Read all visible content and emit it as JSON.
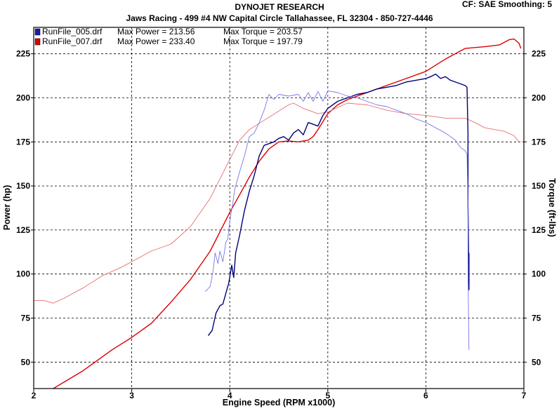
{
  "header": {
    "title": "DYNOJET RESEARCH",
    "subtitle": "Jaws Racing - 499 #4 NW Capital Circle Tallahassee, FL 32304 - 850-727-4446",
    "settings": "CF: SAE  Smoothing: 5"
  },
  "chart_data": {
    "type": "line",
    "xlabel": "Engine Speed (RPM x1000)",
    "ylabel_left": "Power (hp)",
    "ylabel_right": "Torque (ft-lbs)",
    "xlim": [
      2,
      7
    ],
    "ylim": [
      35,
      240
    ],
    "x_ticks": [
      2,
      3,
      4,
      5,
      6,
      7
    ],
    "y_ticks": [
      50,
      75,
      100,
      125,
      150,
      175,
      200,
      225
    ],
    "grid": true,
    "legend_position": "top-left",
    "colors": {
      "run005_power": "#00007a",
      "run005_torque": "#7878e6",
      "run007_power": "#dc0000",
      "run007_torque": "#e66e6e"
    },
    "legend": [
      {
        "file": "RunFile_005.drf",
        "max_power_label": "Max Power = 213.56",
        "max_torque_label": "Max Torque = 203.57",
        "color": "#1a1ab0"
      },
      {
        "file": "RunFile_007.drf",
        "max_power_label": "Max Power = 233.40",
        "max_torque_label": "Max Torque = 197.79",
        "color": "#dc0000"
      }
    ],
    "series": [
      {
        "file": "RunFile_007.drf",
        "kind": "power",
        "points": [
          [
            2.0,
            27
          ],
          [
            2.2,
            35
          ],
          [
            2.5,
            45
          ],
          [
            2.8,
            57
          ],
          [
            3.0,
            64
          ],
          [
            3.2,
            72
          ],
          [
            3.4,
            84
          ],
          [
            3.6,
            97
          ],
          [
            3.8,
            113
          ],
          [
            4.0,
            135
          ],
          [
            4.1,
            145
          ],
          [
            4.2,
            155
          ],
          [
            4.3,
            164
          ],
          [
            4.4,
            171
          ],
          [
            4.5,
            175
          ],
          [
            4.6,
            175.5
          ],
          [
            4.7,
            175
          ],
          [
            4.8,
            176
          ],
          [
            4.85,
            178
          ],
          [
            4.9,
            182
          ],
          [
            5.0,
            191
          ],
          [
            5.1,
            196
          ],
          [
            5.2,
            199
          ],
          [
            5.4,
            203
          ],
          [
            5.6,
            207
          ],
          [
            5.8,
            211
          ],
          [
            6.0,
            215
          ],
          [
            6.2,
            222
          ],
          [
            6.4,
            228
          ],
          [
            6.6,
            229
          ],
          [
            6.75,
            230
          ],
          [
            6.85,
            233
          ],
          [
            6.9,
            233.4
          ],
          [
            6.95,
            231
          ],
          [
            6.97,
            228
          ]
        ]
      },
      {
        "file": "RunFile_007.drf",
        "kind": "torque",
        "points": [
          [
            2.0,
            85
          ],
          [
            2.1,
            85
          ],
          [
            2.2,
            83.5
          ],
          [
            2.3,
            86
          ],
          [
            2.5,
            92
          ],
          [
            2.7,
            99
          ],
          [
            2.9,
            104
          ],
          [
            3.0,
            107
          ],
          [
            3.2,
            113
          ],
          [
            3.4,
            117
          ],
          [
            3.6,
            127
          ],
          [
            3.8,
            143
          ],
          [
            4.0,
            165
          ],
          [
            4.1,
            176
          ],
          [
            4.2,
            182
          ],
          [
            4.4,
            189
          ],
          [
            4.6,
            196
          ],
          [
            4.65,
            197
          ],
          [
            4.75,
            194
          ],
          [
            4.9,
            191
          ],
          [
            5.0,
            192
          ],
          [
            5.2,
            197
          ],
          [
            5.4,
            196
          ],
          [
            5.6,
            193
          ],
          [
            5.8,
            191
          ],
          [
            6.0,
            190
          ],
          [
            6.2,
            188.5
          ],
          [
            6.4,
            188.5
          ],
          [
            6.5,
            186
          ],
          [
            6.6,
            183
          ],
          [
            6.8,
            181
          ],
          [
            6.9,
            178.5
          ],
          [
            6.95,
            175
          ]
        ]
      },
      {
        "file": "RunFile_005.drf",
        "kind": "power",
        "points": [
          [
            3.78,
            65
          ],
          [
            3.82,
            68
          ],
          [
            3.86,
            78
          ],
          [
            3.9,
            82
          ],
          [
            3.93,
            83
          ],
          [
            3.96,
            89
          ],
          [
            3.99,
            95
          ],
          [
            4.02,
            105
          ],
          [
            4.04,
            98
          ],
          [
            4.06,
            112
          ],
          [
            4.1,
            122
          ],
          [
            4.15,
            136
          ],
          [
            4.2,
            147
          ],
          [
            4.25,
            156
          ],
          [
            4.3,
            167
          ],
          [
            4.35,
            173
          ],
          [
            4.4,
            174
          ],
          [
            4.45,
            175
          ],
          [
            4.5,
            177
          ],
          [
            4.55,
            178
          ],
          [
            4.6,
            176
          ],
          [
            4.65,
            180
          ],
          [
            4.7,
            182
          ],
          [
            4.75,
            179
          ],
          [
            4.8,
            186
          ],
          [
            4.85,
            185
          ],
          [
            4.9,
            184
          ],
          [
            4.95,
            190
          ],
          [
            5.0,
            194
          ],
          [
            5.1,
            198
          ],
          [
            5.2,
            200
          ],
          [
            5.3,
            202
          ],
          [
            5.4,
            203
          ],
          [
            5.5,
            205
          ],
          [
            5.6,
            206
          ],
          [
            5.7,
            207
          ],
          [
            5.8,
            209
          ],
          [
            5.9,
            210
          ],
          [
            6.0,
            211
          ],
          [
            6.05,
            212
          ],
          [
            6.1,
            213.5
          ],
          [
            6.15,
            211
          ],
          [
            6.2,
            212
          ],
          [
            6.25,
            210
          ],
          [
            6.3,
            209
          ],
          [
            6.35,
            208
          ],
          [
            6.4,
            207
          ],
          [
            6.42,
            206
          ],
          [
            6.43,
            180
          ],
          [
            6.43,
            140
          ],
          [
            6.44,
            91
          ],
          [
            6.44,
            112
          ]
        ]
      },
      {
        "file": "RunFile_005.drf",
        "kind": "torque",
        "points": [
          [
            3.75,
            90
          ],
          [
            3.8,
            93
          ],
          [
            3.83,
            102
          ],
          [
            3.85,
            112
          ],
          [
            3.88,
            106
          ],
          [
            3.9,
            113
          ],
          [
            3.93,
            107
          ],
          [
            3.96,
            118
          ],
          [
            3.98,
            120
          ],
          [
            4.0,
            130
          ],
          [
            4.03,
            140
          ],
          [
            4.05,
            148
          ],
          [
            4.1,
            158
          ],
          [
            4.15,
            167
          ],
          [
            4.2,
            178
          ],
          [
            4.25,
            180
          ],
          [
            4.3,
            186
          ],
          [
            4.35,
            193
          ],
          [
            4.4,
            202
          ],
          [
            4.45,
            199
          ],
          [
            4.5,
            202
          ],
          [
            4.6,
            201
          ],
          [
            4.7,
            202
          ],
          [
            4.75,
            198
          ],
          [
            4.8,
            203
          ],
          [
            4.85,
            198
          ],
          [
            4.9,
            203.6
          ],
          [
            4.95,
            198
          ],
          [
            5.0,
            204
          ],
          [
            5.1,
            203
          ],
          [
            5.2,
            201
          ],
          [
            5.3,
            200
          ],
          [
            5.4,
            198
          ],
          [
            5.5,
            196
          ],
          [
            5.6,
            195
          ],
          [
            5.7,
            193
          ],
          [
            5.8,
            191
          ],
          [
            5.9,
            188
          ],
          [
            6.0,
            186
          ],
          [
            6.1,
            183
          ],
          [
            6.2,
            180
          ],
          [
            6.3,
            176
          ],
          [
            6.35,
            172
          ],
          [
            6.4,
            170
          ],
          [
            6.42,
            168
          ],
          [
            6.43,
            140
          ],
          [
            6.43,
            100
          ],
          [
            6.44,
            57
          ]
        ]
      }
    ]
  }
}
